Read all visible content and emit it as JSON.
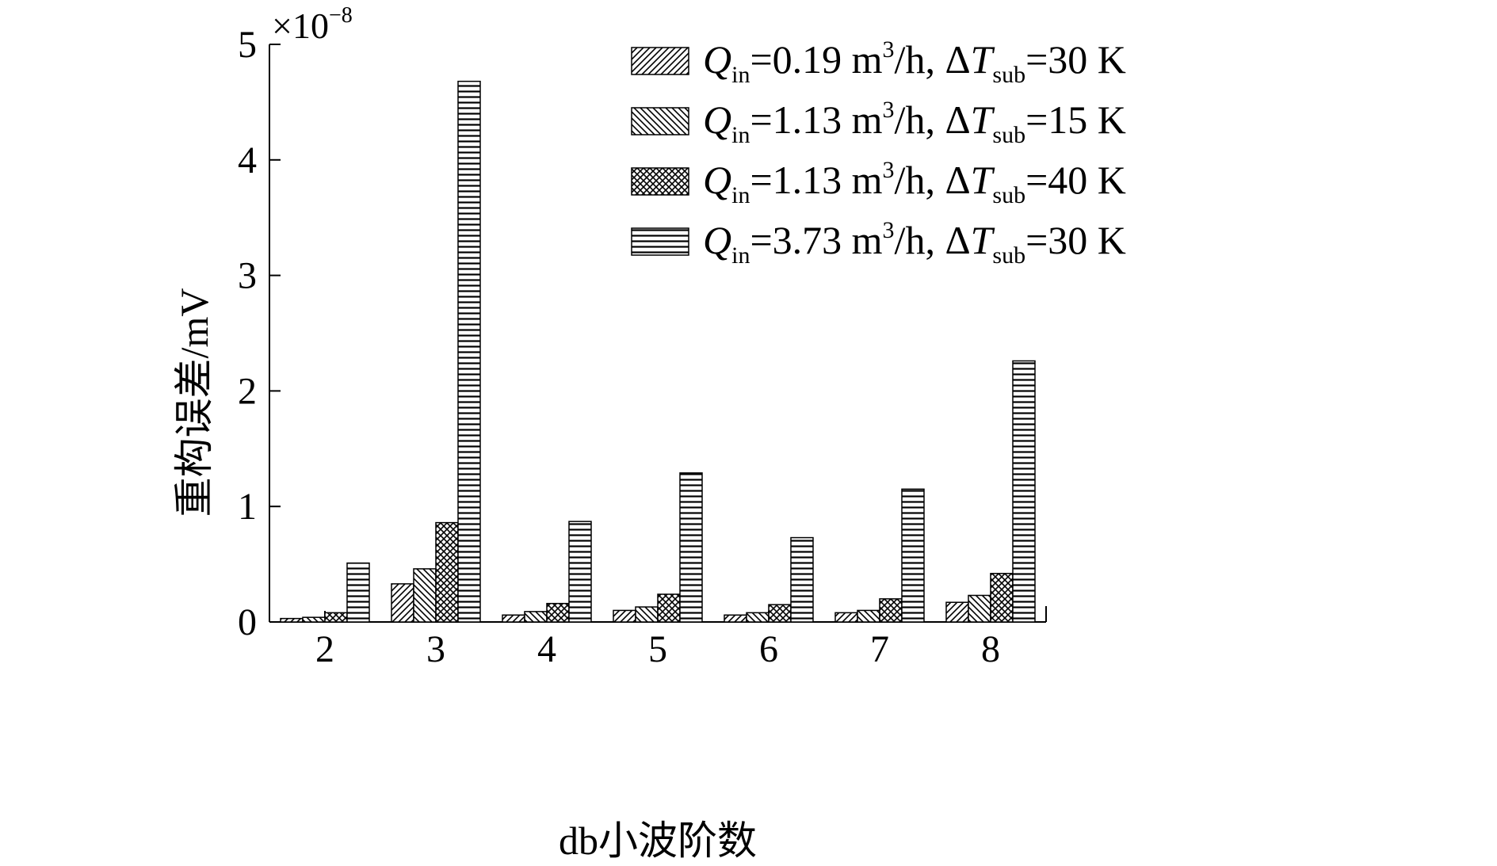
{
  "chart_data": {
    "type": "bar",
    "title": "",
    "xlabel": "db小波阶数",
    "ylabel": "重构误差/mV",
    "y_scale_label": "×10",
    "y_scale_exponent": "−8",
    "ylim": [
      0,
      5
    ],
    "yticks": [
      "0",
      "1",
      "2",
      "3",
      "4",
      "5"
    ],
    "categories": [
      "2",
      "3",
      "4",
      "5",
      "6",
      "7",
      "8"
    ],
    "grid": false,
    "legend_position": "top-right",
    "series": [
      {
        "pattern": "diagonal-up",
        "legend": {
          "q": "Q",
          "q_sub": "in",
          "mid": "=0.19 m",
          "sup": "3",
          "mid2": "/h, Δ",
          "t": "T",
          "t_sub": "sub",
          "end": "=30 K"
        },
        "values": [
          0.03,
          0.33,
          0.06,
          0.1,
          0.06,
          0.08,
          0.17
        ]
      },
      {
        "pattern": "diagonal-down",
        "legend": {
          "q": "Q",
          "q_sub": "in",
          "mid": "=1.13 m",
          "sup": "3",
          "mid2": "/h, Δ",
          "t": "T",
          "t_sub": "sub",
          "end": "=15 K"
        },
        "values": [
          0.04,
          0.46,
          0.09,
          0.13,
          0.08,
          0.1,
          0.23
        ]
      },
      {
        "pattern": "crosshatch",
        "legend": {
          "q": "Q",
          "q_sub": "in",
          "mid": "=1.13 m",
          "sup": "3",
          "mid2": "/h, Δ",
          "t": "T",
          "t_sub": "sub",
          "end": "=40 K"
        },
        "values": [
          0.08,
          0.86,
          0.16,
          0.24,
          0.15,
          0.2,
          0.42
        ]
      },
      {
        "pattern": "horizontal",
        "legend": {
          "q": "Q",
          "q_sub": "in",
          "mid": "=3.73 m",
          "sup": "3",
          "mid2": "/h, Δ",
          "t": "T",
          "t_sub": "sub",
          "end": "=30 K"
        },
        "values": [
          0.51,
          4.68,
          0.87,
          1.29,
          0.73,
          1.15,
          2.26
        ]
      }
    ]
  }
}
